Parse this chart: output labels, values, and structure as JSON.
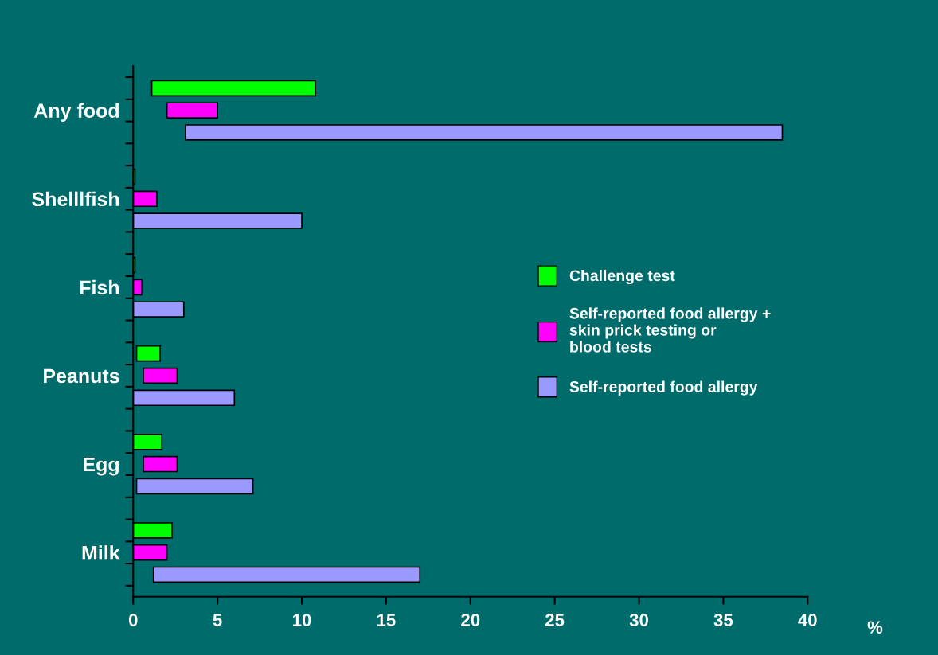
{
  "chart_data": {
    "type": "bar",
    "orientation": "horizontal",
    "xlabel": "%",
    "categories": [
      "Any food",
      "Shelllfish",
      "Fish",
      "Peanuts",
      "Egg",
      "Milk"
    ],
    "series": [
      {
        "name": "Challenge test",
        "color": "#00ff00",
        "base": [
          1.1,
          0,
          0,
          0.2,
          0,
          0
        ],
        "values": [
          9.7,
          0.1,
          0.1,
          1.4,
          1.7,
          2.3
        ]
      },
      {
        "name": "Self-reported food allergy +\nskin prick testing or\nblood tests",
        "color": "#ff00ff",
        "base": [
          2.0,
          0,
          0,
          0.6,
          0.6,
          0
        ],
        "values": [
          3.0,
          1.4,
          0.5,
          2.0,
          2.0,
          2.0
        ]
      },
      {
        "name": "Self-reported food allergy",
        "color": "#9999ff",
        "base": [
          3.1,
          0,
          0,
          0,
          0.2,
          1.2
        ],
        "values": [
          35.4,
          10.0,
          3.0,
          6.0,
          6.9,
          15.8
        ]
      }
    ],
    "xlim": [
      0,
      40
    ],
    "xticks": [
      0,
      5,
      10,
      15,
      20,
      25,
      30,
      35,
      40
    ],
    "grid": false,
    "legend": "right"
  }
}
